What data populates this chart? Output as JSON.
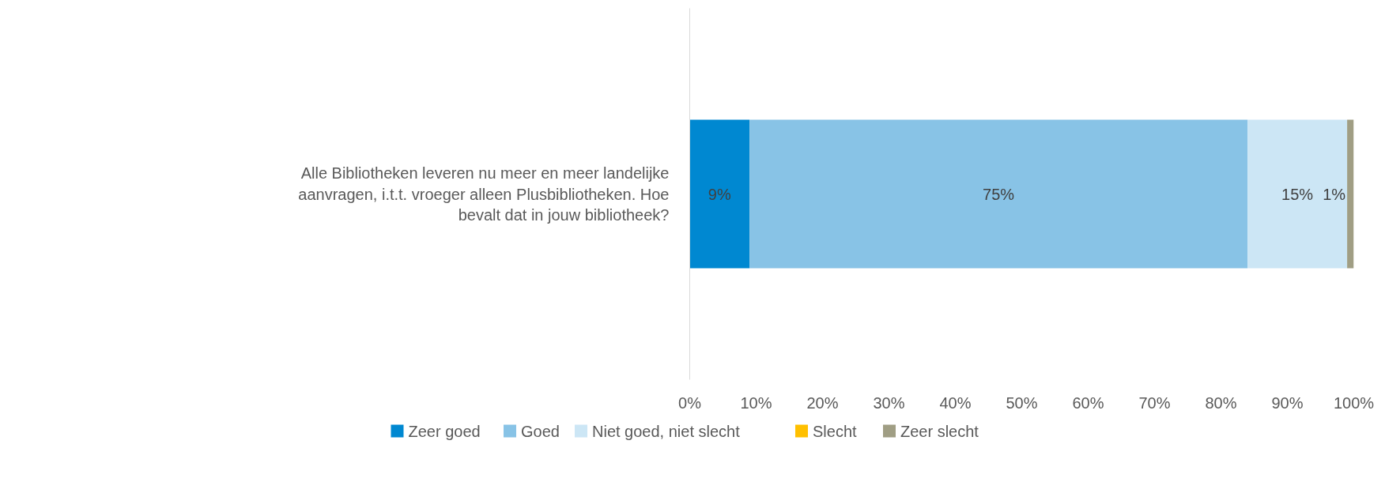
{
  "chart_data": {
    "type": "bar",
    "orientation": "horizontal",
    "stacked": true,
    "categories": [
      "Alle Bibliotheken leveren nu meer en meer landelijke aanvragen, i.t.t. vroeger alleen Plusbibliotheken. Hoe bevalt dat in jouw bibliotheek?"
    ],
    "series": [
      {
        "name": "Zeer goed",
        "color": "#0088d1",
        "values": [
          9
        ],
        "value_labels": [
          "9%"
        ]
      },
      {
        "name": "Goed",
        "color": "#88c3e6",
        "values": [
          75
        ],
        "value_labels": [
          "75%"
        ]
      },
      {
        "name": "Niet goed, niet slecht",
        "color": "#cce6f5",
        "values": [
          15
        ],
        "value_labels": [
          "15%"
        ]
      },
      {
        "name": "Slecht",
        "color": "#ffc000",
        "values": [
          0
        ],
        "value_labels": [
          null
        ]
      },
      {
        "name": "Zeer slecht",
        "color": "#a09e84",
        "values": [
          1
        ],
        "value_labels": [
          "1%"
        ]
      }
    ],
    "xlim": [
      0,
      100
    ],
    "xticks": [
      {
        "value": 0,
        "label": "0%"
      },
      {
        "value": 10,
        "label": "10%"
      },
      {
        "value": 20,
        "label": "20%"
      },
      {
        "value": 30,
        "label": "30%"
      },
      {
        "value": 40,
        "label": "40%"
      },
      {
        "value": 50,
        "label": "50%"
      },
      {
        "value": 60,
        "label": "60%"
      },
      {
        "value": 70,
        "label": "70%"
      },
      {
        "value": 80,
        "label": "80%"
      },
      {
        "value": 90,
        "label": "90%"
      },
      {
        "value": 100,
        "label": "100%"
      }
    ],
    "grid": false,
    "legend": "bottom"
  }
}
